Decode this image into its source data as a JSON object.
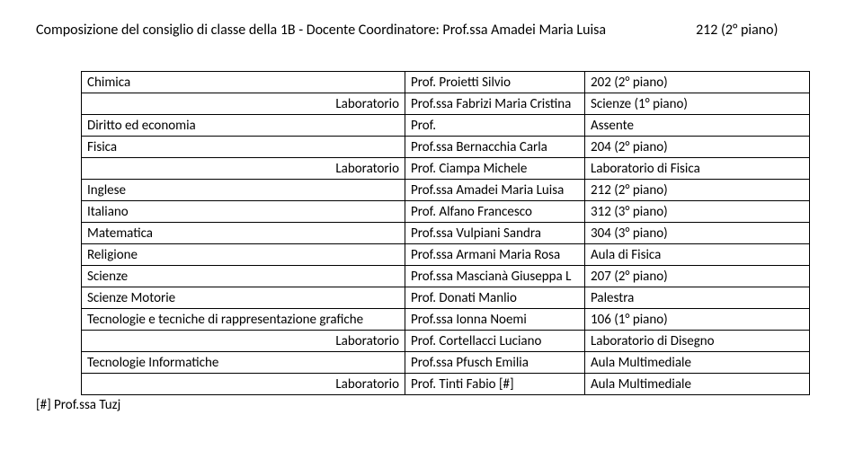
{
  "header": {
    "left": "Composizione del consiglio di classe della 1B - Docente Coordinatore: Prof.ssa Amadei Maria Luisa",
    "right": "212 (2° piano)"
  },
  "rows": [
    {
      "c1": "Chimica",
      "c2": "Prof. Proietti Silvio",
      "c3": "202 (2° piano)"
    },
    {
      "c1": "Laboratorio",
      "align": "right",
      "c2": "Prof.ssa Fabrizi Maria Cristina",
      "c3": "Scienze (1° piano)"
    },
    {
      "c1": "Diritto ed economia",
      "c2": "Prof.",
      "c3": "Assente"
    },
    {
      "c1": "Fisica",
      "c2": "Prof.ssa Bernacchia Carla",
      "c3": "204 (2° piano)"
    },
    {
      "c1": "Laboratorio",
      "align": "right",
      "c2": "Prof. Ciampa Michele",
      "c3": "Laboratorio di Fisica"
    },
    {
      "c1": "Inglese",
      "c2": "Prof.ssa Amadei Maria Luisa",
      "c3": "212 (2° piano)"
    },
    {
      "c1": "Italiano",
      "c2": "Prof. Alfano Francesco",
      "c3": "312 (3° piano)"
    },
    {
      "c1": "Matematica",
      "c2": "Prof.ssa Vulpiani Sandra",
      "c3": "304 (3° piano)"
    },
    {
      "c1": "Religione",
      "c2": "Prof.ssa Armani Maria Rosa",
      "c3": "Aula di Fisica"
    },
    {
      "c1": "Scienze",
      "c2": "Prof.ssa Mascianà Giuseppa L",
      "c3": "207 (2° piano)"
    },
    {
      "c1": "Scienze Motorie",
      "c2": "Prof. Donati Manlio",
      "c3": "Palestra"
    },
    {
      "c1": "Tecnologie e tecniche di rappresentazione grafiche",
      "c2": "Prof.ssa Ionna Noemi",
      "c3": "106 (1° piano)"
    },
    {
      "c1": "Laboratorio",
      "align": "right",
      "c2": "Prof. Cortellacci Luciano",
      "c3": "Laboratorio di Disegno"
    },
    {
      "c1": "Tecnologie Informatiche",
      "c2": "Prof.ssa Pfusch Emilia",
      "c3": "Aula Multimediale"
    },
    {
      "c1": "Laboratorio",
      "align": "right",
      "c2": "Prof. Tinti Fabio [#]",
      "c3": "Aula Multimediale"
    }
  ],
  "footer": "[#] Prof.ssa Tuzj"
}
